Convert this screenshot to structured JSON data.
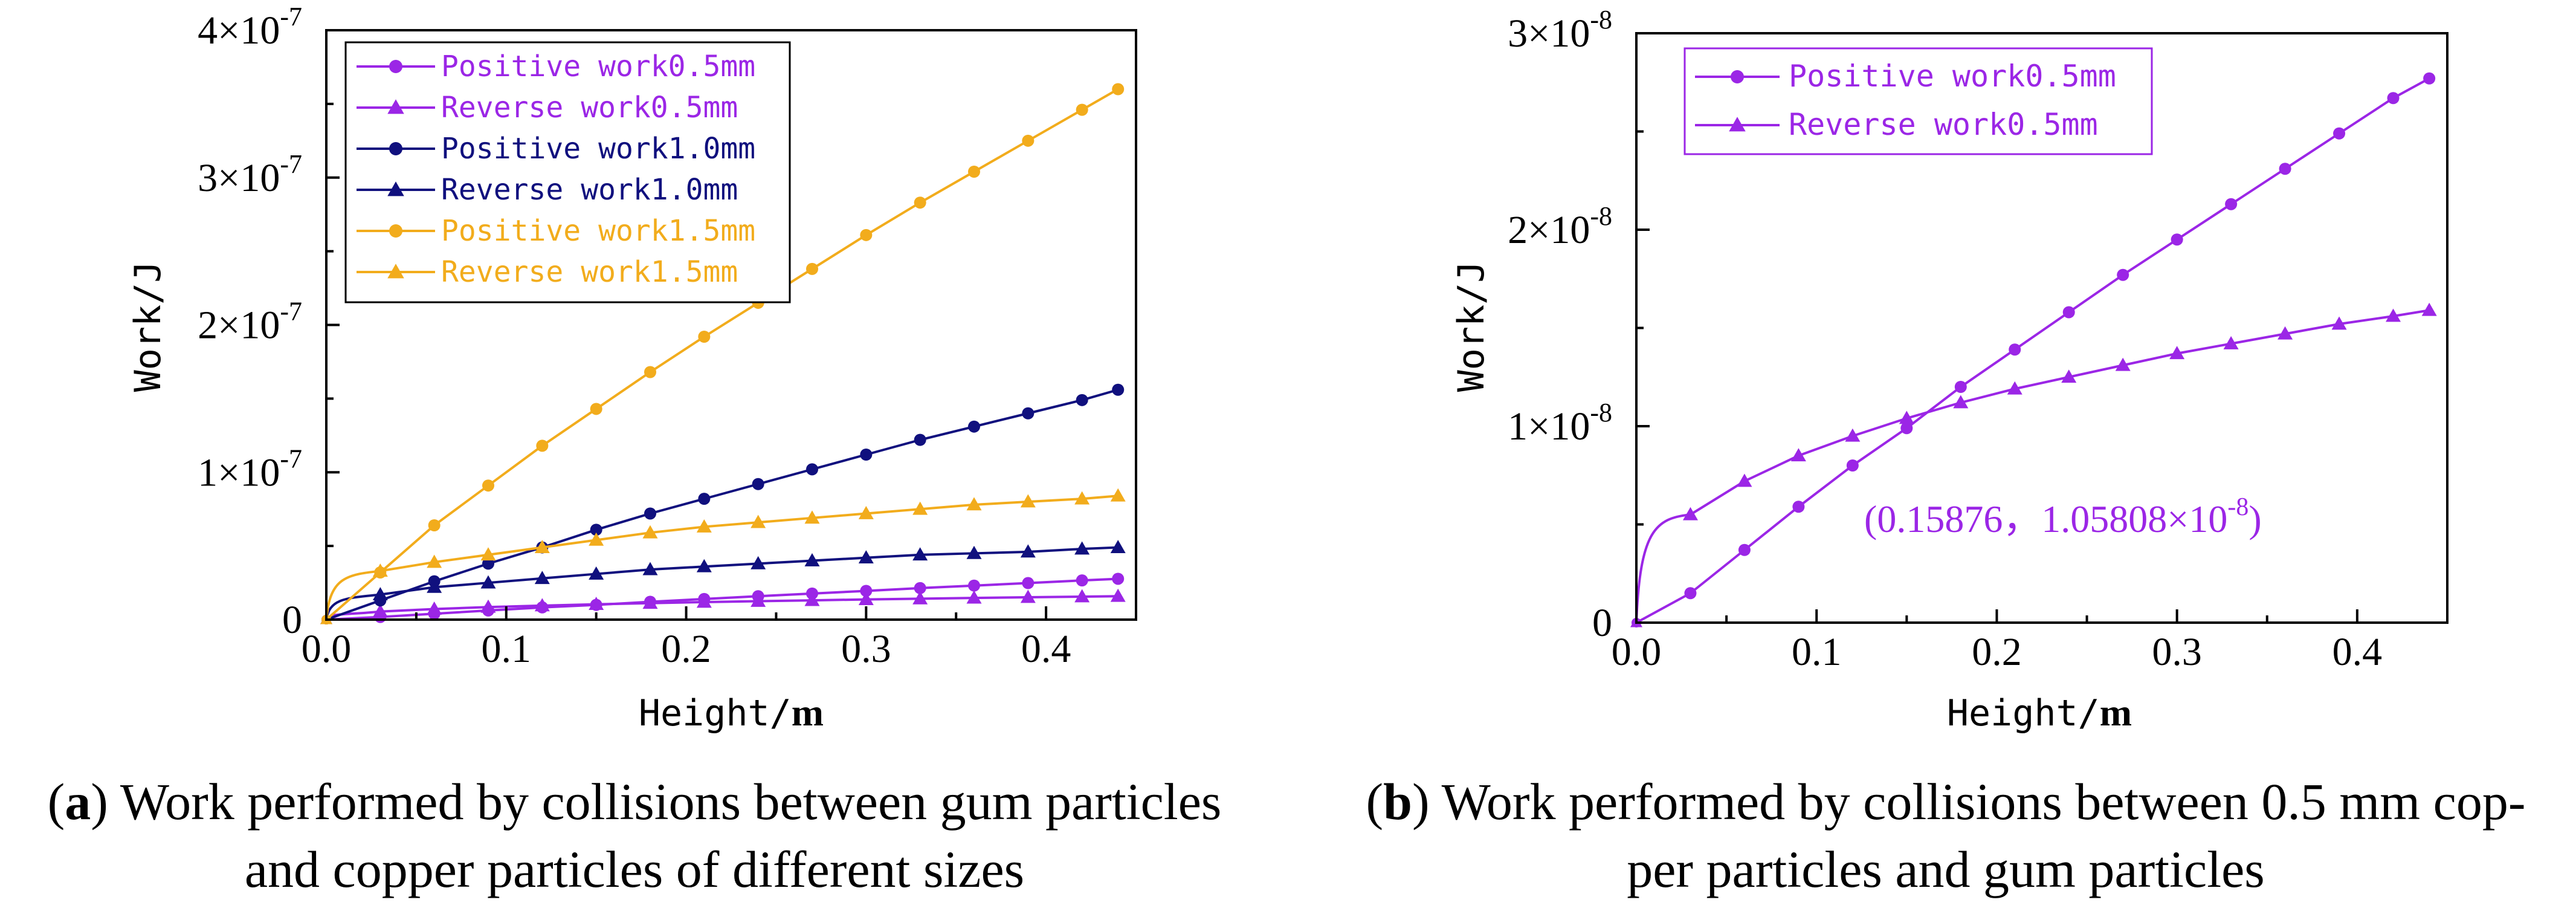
{
  "chart_data": [
    {
      "type": "line",
      "panel": "a",
      "xlabel_main": "Height/",
      "xlabel_unit": "m",
      "ylabel": "Work/J",
      "xlim": [
        0,
        0.45
      ],
      "ylim": [
        0,
        4e-07
      ],
      "x_ticks": [
        0.0,
        0.1,
        0.2,
        0.3,
        0.4
      ],
      "x_tick_labels": [
        "0.0",
        "0.1",
        "0.2",
        "0.3",
        "0.4"
      ],
      "y_ticks": [
        0,
        1e-07,
        2e-07,
        3e-07,
        4e-07
      ],
      "y_tick_labels": [
        {
          "mant": "0",
          "exp": ""
        },
        {
          "mant": "1×10",
          "exp": "-7"
        },
        {
          "mant": "2×10",
          "exp": "-7"
        },
        {
          "mant": "3×10",
          "exp": "-7"
        },
        {
          "mant": "4×10",
          "exp": "-7"
        }
      ],
      "legend_position": "top-left",
      "x": [
        0,
        0.03,
        0.06,
        0.09,
        0.12,
        0.15,
        0.18,
        0.21,
        0.24,
        0.27,
        0.3,
        0.33,
        0.36,
        0.39,
        0.42,
        0.44
      ],
      "series": [
        {
          "name": "Positive work0.5mm",
          "color": "#9b26e6",
          "marker": "circle",
          "values": [
            0,
            1.8e-09,
            4e-09,
            6.2e-09,
            8.3e-09,
            1e-08,
            1.21e-08,
            1.4e-08,
            1.59e-08,
            1.77e-08,
            1.95e-08,
            2.14e-08,
            2.31e-08,
            2.48e-08,
            2.66e-08,
            2.77e-08
          ]
        },
        {
          "name": "Reverse work0.5mm",
          "color": "#9b26e6",
          "marker": "triangle",
          "values": [
            0,
            5.5e-09,
            7.2e-09,
            8.5e-09,
            9.5e-09,
            1.04e-08,
            1.12e-08,
            1.19e-08,
            1.25e-08,
            1.31e-08,
            1.37e-08,
            1.42e-08,
            1.47e-08,
            1.52e-08,
            1.56e-08,
            1.59e-08
          ]
        },
        {
          "name": "Positive work1.0mm",
          "color": "#10107e",
          "marker": "circle",
          "values": [
            0,
            1.3e-08,
            2.6e-08,
            3.8e-08,
            4.9e-08,
            6.1e-08,
            7.2e-08,
            8.2e-08,
            9.2e-08,
            1.02e-07,
            1.12e-07,
            1.22e-07,
            1.31e-07,
            1.4e-07,
            1.49e-07,
            1.56e-07
          ]
        },
        {
          "name": "Reverse work1.0mm",
          "color": "#10107e",
          "marker": "triangle",
          "values": [
            0,
            1.7e-08,
            2.2e-08,
            2.5e-08,
            2.8e-08,
            3.1e-08,
            3.4e-08,
            3.6e-08,
            3.8e-08,
            4e-08,
            4.2e-08,
            4.4e-08,
            4.5e-08,
            4.6e-08,
            4.8e-08,
            4.9e-08
          ]
        },
        {
          "name": "Positive work1.5mm",
          "color": "#f2ac1c",
          "marker": "circle",
          "values": [
            0,
            3.2e-08,
            6.4e-08,
            9.1e-08,
            1.18e-07,
            1.43e-07,
            1.68e-07,
            1.92e-07,
            2.15e-07,
            2.38e-07,
            2.61e-07,
            2.83e-07,
            3.04e-07,
            3.25e-07,
            3.46e-07,
            3.6e-07
          ]
        },
        {
          "name": "Reverse work1.5mm",
          "color": "#f2ac1c",
          "marker": "triangle",
          "values": [
            0,
            3.3e-08,
            3.9e-08,
            4.4e-08,
            4.9e-08,
            5.4e-08,
            5.9e-08,
            6.3e-08,
            6.6e-08,
            6.9e-08,
            7.2e-08,
            7.5e-08,
            7.8e-08,
            8e-08,
            8.2e-08,
            8.4e-08
          ]
        }
      ]
    },
    {
      "type": "line",
      "panel": "b",
      "xlabel_main": "Height/",
      "xlabel_unit": "m",
      "ylabel": "Work/J",
      "xlim": [
        0,
        0.45
      ],
      "ylim": [
        0,
        3e-08
      ],
      "x_ticks": [
        0.0,
        0.1,
        0.2,
        0.3,
        0.4
      ],
      "x_tick_labels": [
        "0.0",
        "0.1",
        "0.2",
        "0.3",
        "0.4"
      ],
      "y_ticks": [
        0,
        1e-08,
        2e-08,
        3e-08
      ],
      "y_tick_labels": [
        {
          "mant": "0",
          "exp": ""
        },
        {
          "mant": "1×10",
          "exp": "-8"
        },
        {
          "mant": "2×10",
          "exp": "-8"
        },
        {
          "mant": "3×10",
          "exp": "-8"
        }
      ],
      "legend_position": "top-left",
      "x": [
        0,
        0.03,
        0.06,
        0.09,
        0.12,
        0.15,
        0.18,
        0.21,
        0.24,
        0.27,
        0.3,
        0.33,
        0.36,
        0.39,
        0.42,
        0.44
      ],
      "series": [
        {
          "name": "Positive work0.5mm",
          "color": "#9b26e6",
          "marker": "circle",
          "values": [
            0,
            1.5e-09,
            3.7e-09,
            5.9e-09,
            8e-09,
            9.9e-09,
            1.2e-08,
            1.39e-08,
            1.58e-08,
            1.77e-08,
            1.95e-08,
            2.13e-08,
            2.31e-08,
            2.49e-08,
            2.67e-08,
            2.77e-08
          ]
        },
        {
          "name": "Reverse work0.5mm",
          "color": "#9b26e6",
          "marker": "triangle",
          "values": [
            0,
            5.5e-09,
            7.2e-09,
            8.5e-09,
            9.5e-09,
            1.04e-08,
            1.12e-08,
            1.19e-08,
            1.25e-08,
            1.31e-08,
            1.37e-08,
            1.42e-08,
            1.47e-08,
            1.52e-08,
            1.56e-08,
            1.59e-08
          ]
        }
      ],
      "annotation": {
        "x": 0.15876,
        "y": 1.05808e-08,
        "text_main": "(0.15876，1.05808×10",
        "text_exp": "-8",
        "text_close": ")",
        "color": "#9b26e6"
      }
    }
  ],
  "captions": {
    "a_label": "a",
    "a_line1": "Work performed by collisions between gum particles",
    "a_line2": "and copper particles of different sizes",
    "b_label": "b",
    "b_line1": "Work performed by collisions between 0.5 mm cop-",
    "b_line2": "per particles and gum particles"
  }
}
